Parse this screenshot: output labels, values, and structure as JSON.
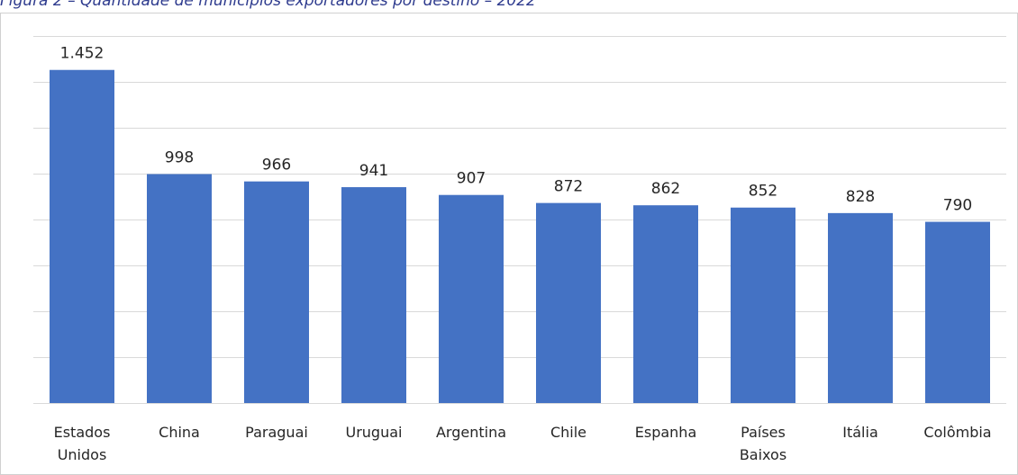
{
  "figure": {
    "caption": "Figura 2 – Quantidade de municípios exportadores por destino – 2022"
  },
  "chart_data": {
    "type": "bar",
    "categories": [
      [
        "Estados",
        "Unidos"
      ],
      [
        "China"
      ],
      [
        "Paraguai"
      ],
      [
        "Uruguai"
      ],
      [
        "Argentina"
      ],
      [
        "Chile"
      ],
      [
        "Espanha"
      ],
      [
        "Países",
        "Baixos"
      ],
      [
        "Itália"
      ],
      [
        "Colômbia"
      ]
    ],
    "values": [
      1452,
      998,
      966,
      941,
      907,
      872,
      862,
      852,
      828,
      790
    ],
    "value_labels": [
      "1.452",
      "998",
      "966",
      "941",
      "907",
      "872",
      "862",
      "852",
      "828",
      "790"
    ],
    "title": "",
    "xlabel": "",
    "ylabel": "",
    "ylim": [
      0,
      1600
    ],
    "y_gridline_step": 200,
    "grid": true,
    "y_axis_labels_shown": false,
    "legend": "none",
    "bar_color": "#4472c4",
    "gridline_color": "#d9d9d9"
  }
}
